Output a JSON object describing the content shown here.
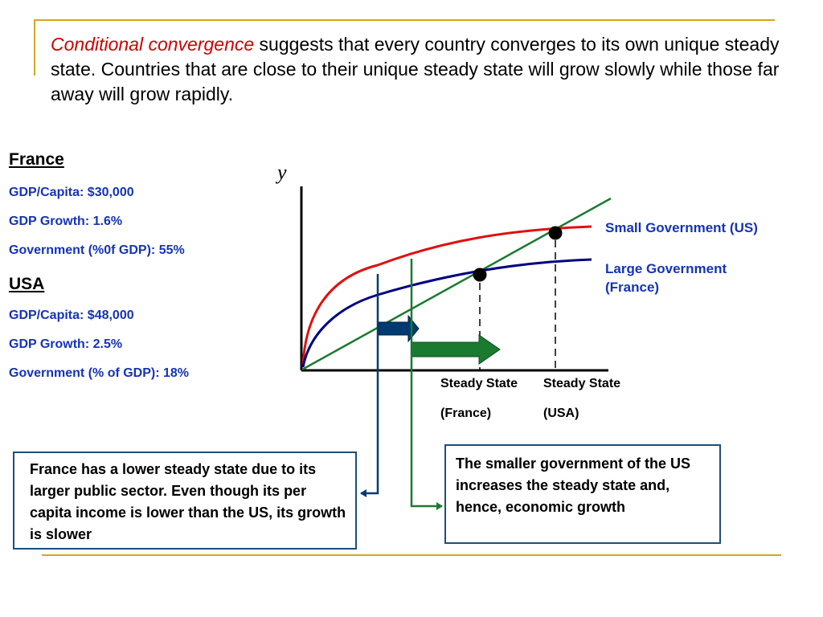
{
  "intro": {
    "highlight": "Conditional convergence",
    "text": " suggests that every country converges to its own unique steady state.  Countries that are close to their unique steady state will grow slowly while those far away will grow rapidly."
  },
  "france": {
    "heading": "France",
    "gdp_capita": "GDP/Capita: $30,000",
    "gdp_growth": "GDP Growth: 1.6%",
    "government": "Government (%0f GDP): 55%"
  },
  "usa": {
    "heading": "USA",
    "gdp_capita": "GDP/Capita: $48,000",
    "gdp_growth": "GDP Growth: 2.5%",
    "government": "Government (% of GDP): 18%"
  },
  "diagram": {
    "y_axis_label": "y",
    "small_gov_label": "Small Government (US)",
    "large_gov_label_line1": "Large Government",
    "large_gov_label_line2": "(France)",
    "ss_france_line1": "Steady State",
    "ss_france_line2": "(France)",
    "ss_usa_line1": "Steady State",
    "ss_usa_line2": "(USA)",
    "colors": {
      "small_gov_curve": "#e01010",
      "large_gov_curve": "#000080",
      "investment_line": "#1a7a30",
      "france_arrow": "#003a70",
      "usa_arrow": "#1a7a30",
      "label_blue": "#1433b8"
    }
  },
  "callouts": {
    "france": "France has a lower steady state due to its larger public sector.  Even though its per capita income is lower than the US, its growth is slower",
    "usa": "The smaller government of the US increases the steady state and, hence, economic growth"
  }
}
